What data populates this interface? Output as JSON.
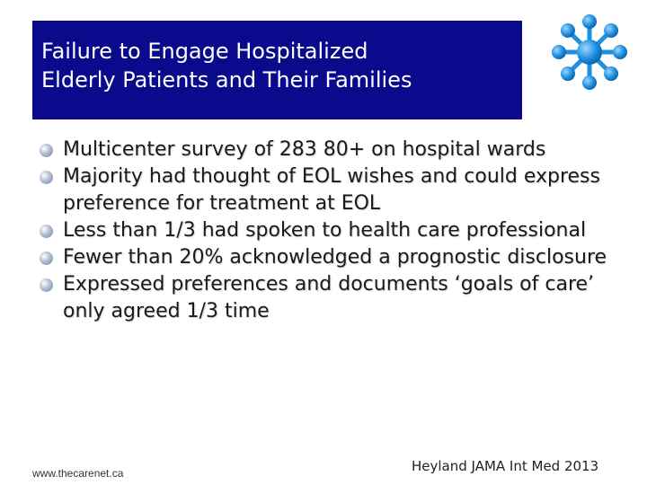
{
  "slide": {
    "title_lines": [
      "Failure to Engage Hospitalized",
      "Elderly Patients and Their Families"
    ],
    "bullets": [
      "Multicenter survey of 283 80+ on hospital wards",
      "Majority had thought of EOL wishes and could express preference for treatment at EOL",
      "Less than 1/3 had spoken to health care professional",
      "Fewer than 20% acknowledged a prognostic disclosure",
      "Expressed preferences and documents ‘goals of care’ only agreed 1/3 time"
    ],
    "footer_url": "www.thecarenet.ca",
    "citation": "Heyland JAMA Int Med 2013"
  },
  "colors": {
    "title_background": "#0a0a8c",
    "logo_blue": "#1e90e0"
  },
  "icons": {
    "logo": "molecule-logo-icon"
  }
}
